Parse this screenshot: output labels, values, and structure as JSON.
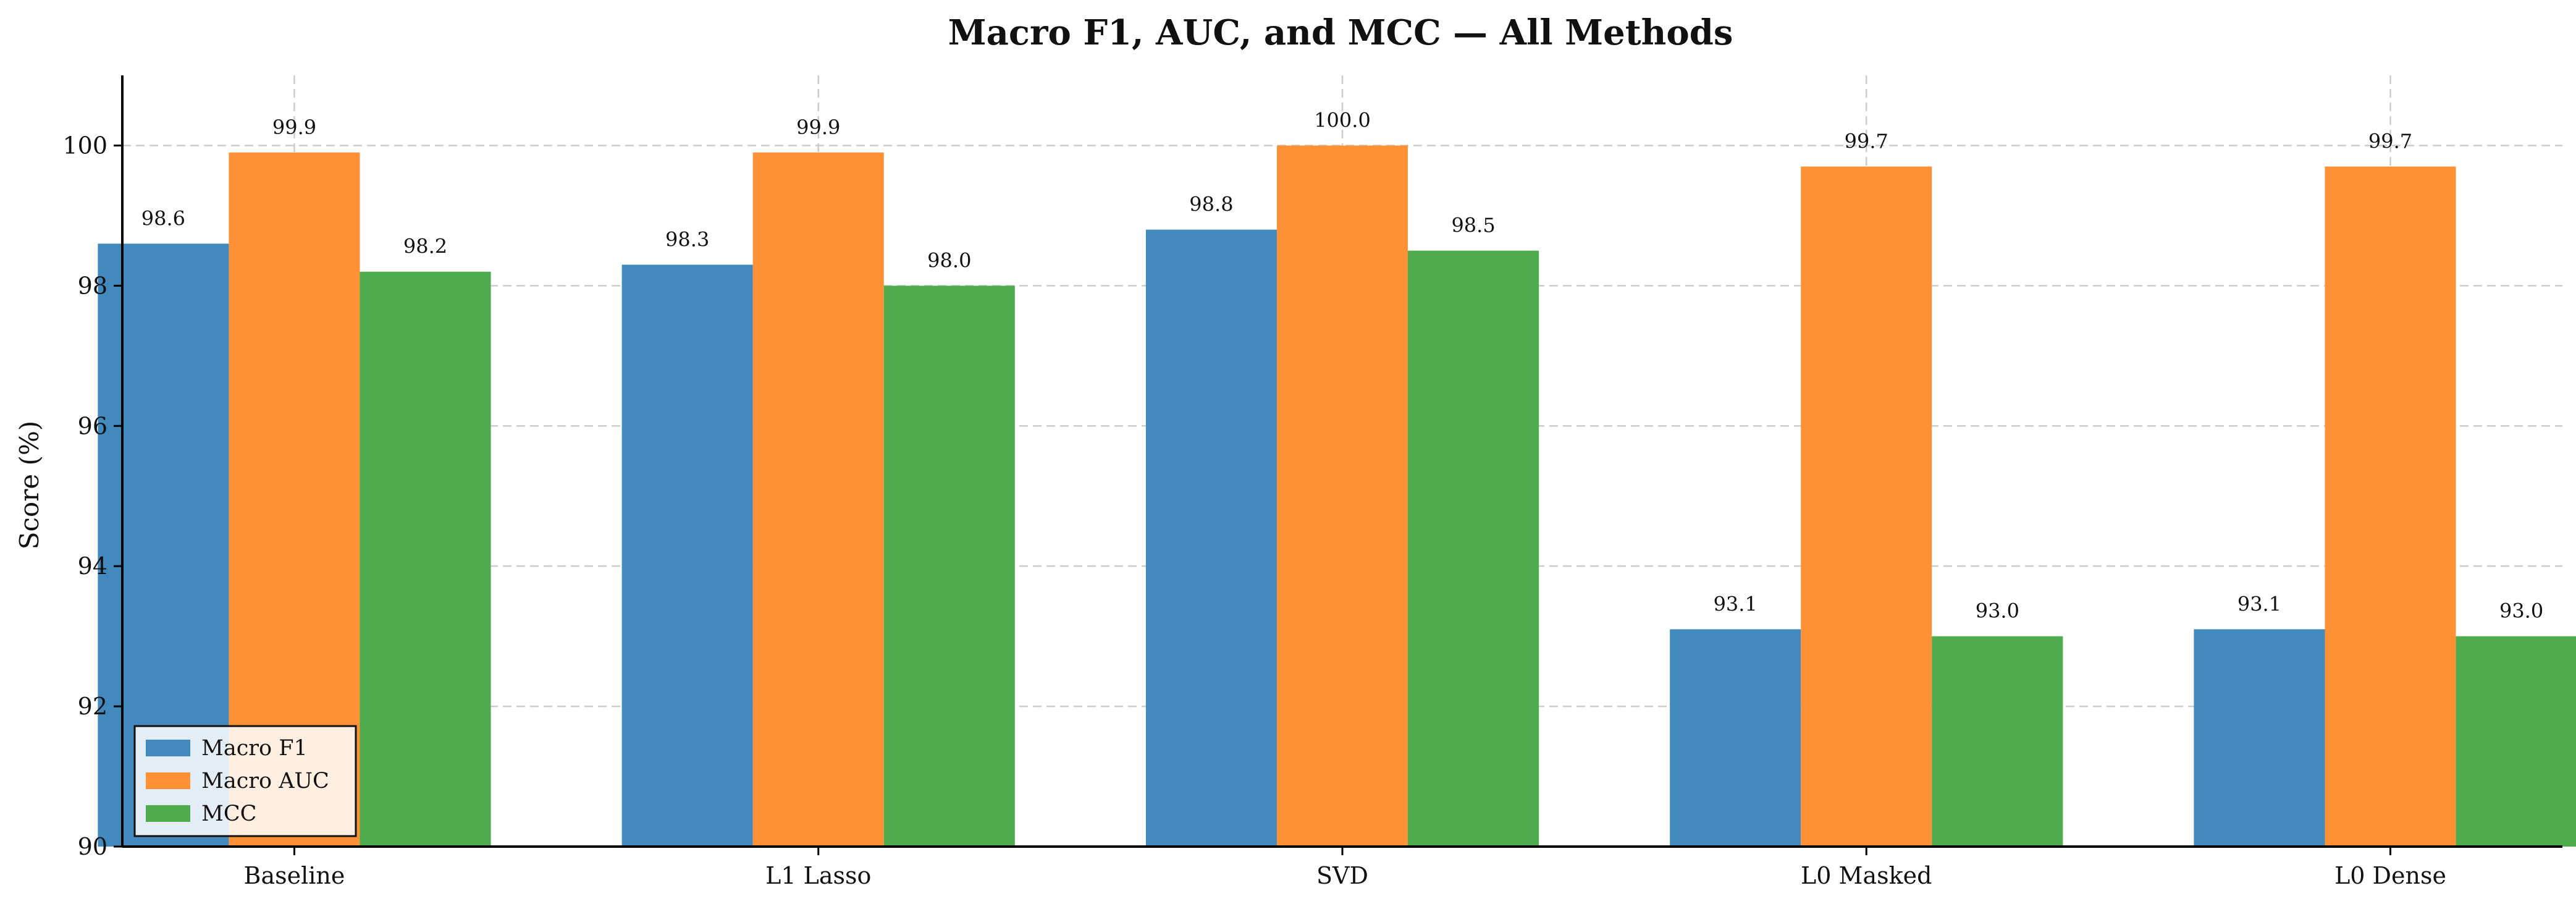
{
  "chart_data": {
    "type": "bar",
    "title": "Macro F1, AUC, and MCC — All Methods",
    "xlabel": "",
    "ylabel": "Score (%)",
    "ylim": [
      90,
      101
    ],
    "yticks": [
      90,
      92,
      94,
      96,
      98,
      100
    ],
    "grid": true,
    "legend_position": "bottom-left",
    "categories": [
      "Baseline",
      "L1 Lasso",
      "SVD",
      "L0 Masked",
      "L0 Dense"
    ],
    "series": [
      {
        "name": "Macro F1",
        "color": "#4289be",
        "values": [
          98.6,
          98.3,
          98.8,
          93.1,
          93.1
        ],
        "labels": [
          "98.6",
          "98.3",
          "98.8",
          "93.1",
          "93.1"
        ]
      },
      {
        "name": "Macro AUC",
        "color": "#fe9136",
        "values": [
          99.9,
          99.9,
          100.0,
          99.7,
          99.7
        ],
        "labels": [
          "99.9",
          "99.9",
          "100.0",
          "99.7",
          "99.7"
        ]
      },
      {
        "name": "MCC",
        "color": "#4eac4e",
        "values": [
          98.2,
          98.0,
          98.5,
          93.0,
          93.0
        ],
        "labels": [
          "98.2",
          "98.0",
          "98.5",
          "93.0",
          "93.0"
        ]
      }
    ]
  }
}
